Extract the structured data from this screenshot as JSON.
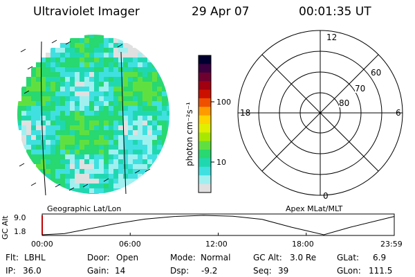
{
  "header": {
    "instrument": "Ultraviolet Imager",
    "date": "29 Apr 07",
    "time": "00:01:35 UT"
  },
  "colorbar": {
    "unit_label": "photon cm⁻²s⁻¹",
    "ticks": [
      "100",
      "10"
    ],
    "colors": [
      "#000030",
      "#3a0040",
      "#6e0030",
      "#a00010",
      "#cc1000",
      "#ee5000",
      "#ff9a00",
      "#ffd400",
      "#e0f000",
      "#a8e800",
      "#60e040",
      "#28d870",
      "#20d8b0",
      "#40e0e0",
      "#a0f0f0",
      "#e0e0e0"
    ]
  },
  "polar": {
    "labels": {
      "top": "12",
      "left": "18",
      "right": "6",
      "bottom": "0"
    },
    "lat_labels": [
      "60",
      "70",
      "80"
    ]
  },
  "map_labels": {
    "left": "Geographic Lat/Lon",
    "right": "Apex MLat/MLT"
  },
  "timeline": {
    "axis_label": "GC Alt",
    "y_top": "9.0",
    "y_bottom": "1.8",
    "x_ticks": [
      "00:00",
      "06:00",
      "12:00",
      "18:00",
      "23:59"
    ],
    "series": [
      [
        0,
        1.8
      ],
      [
        1.5,
        2.2
      ],
      [
        3,
        3.8
      ],
      [
        5,
        5.9
      ],
      [
        7,
        7.6
      ],
      [
        9,
        8.6
      ],
      [
        11,
        9.0
      ],
      [
        13,
        8.7
      ],
      [
        15,
        7.5
      ],
      [
        17,
        4.6
      ],
      [
        19.2,
        1.8
      ],
      [
        21,
        4.6
      ],
      [
        23.99,
        8.6
      ]
    ]
  },
  "info": {
    "filter_label": "Flt:",
    "filter_value": "LBHL",
    "door_label": "Door:",
    "door_value": "Open",
    "mode_label": "Mode:",
    "mode_value": "Normal",
    "gcalt_label": "GC Alt:",
    "gcalt_value": "3.0 Re",
    "glat_label": "GLat:",
    "glat_value": "6.9",
    "ip_label": "IP:",
    "ip_value": "36.0",
    "gain_label": "Gain:",
    "gain_value": "14",
    "dsp_label": "Dsp:",
    "dsp_value": "-9.2",
    "seq_label": "Seq:",
    "seq_value": "39",
    "glon_label": "GLon:",
    "glon_value": "111.5"
  }
}
